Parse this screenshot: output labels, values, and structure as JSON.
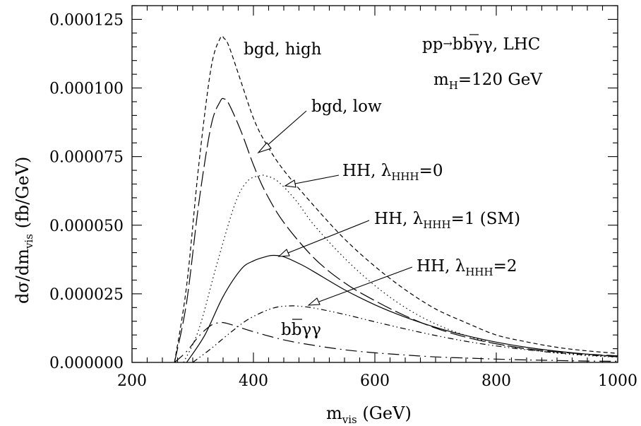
{
  "chart_data": {
    "type": "line",
    "xlabel": "m_vis (GeV)",
    "ylabel": "dσ/dm_vis (fb/GeV)",
    "xlim": [
      200,
      1000
    ],
    "ylim": [
      0,
      0.00013
    ],
    "x_ticks": [
      "200",
      "400",
      "600",
      "800",
      "1000"
    ],
    "y_ticks": [
      "0.000000",
      "0.000025",
      "0.000050",
      "0.000075",
      "0.000100",
      "0.000125"
    ],
    "legend_text": {
      "process": "pp → bb̄γγ, LHC",
      "mass": "m_H = 120 GeV"
    },
    "series": [
      {
        "name": "bgd, high",
        "x": [
          270,
          290,
          310,
          330,
          345,
          352,
          360,
          380,
          400,
          420,
          450,
          500,
          550,
          600,
          650,
          700,
          750,
          800,
          850,
          900,
          950,
          1000
        ],
        "y": [
          0,
          2.8e-05,
          7.2e-05,
          0.000107,
          0.000118,
          0.000118,
          0.000115,
          0.000102,
          8.9e-05,
          8e-05,
          7e-05,
          5.7e-05,
          4.5e-05,
          3.5e-05,
          2.65e-05,
          1.95e-05,
          1.45e-05,
          1e-05,
          7.5e-06,
          5.5e-06,
          4.2e-06,
          3.3e-06
        ]
      },
      {
        "name": "bgd, low",
        "x": [
          270,
          290,
          310,
          330,
          345,
          352,
          360,
          380,
          400,
          420,
          450,
          500,
          550,
          600,
          650,
          700,
          750,
          800,
          850,
          900,
          950,
          1000
        ],
        "y": [
          0,
          2.2e-05,
          5.8e-05,
          8.6e-05,
          9.5e-05,
          9.6e-05,
          9.4e-05,
          8.4e-05,
          7.2e-05,
          6.2e-05,
          5.1e-05,
          3.8e-05,
          2.9e-05,
          2.25e-05,
          1.7e-05,
          1.25e-05,
          9.2e-06,
          6.8e-06,
          5e-06,
          3.8e-06,
          3e-06,
          2.4e-06
        ]
      },
      {
        "name": "HH, λ_HHH=0",
        "x": [
          285,
          310,
          340,
          370,
          390,
          410,
          420,
          440,
          470,
          500,
          550,
          600,
          650,
          700,
          750,
          800,
          850,
          900,
          950,
          1000
        ],
        "y": [
          0,
          1.2e-05,
          3.6e-05,
          5.8e-05,
          6.6e-05,
          6.8e-05,
          6.8e-05,
          6.6e-05,
          5.9e-05,
          5e-05,
          3.8e-05,
          2.8e-05,
          2e-05,
          1.4e-05,
          9.8e-06,
          6.8e-06,
          4.8e-06,
          3.4e-06,
          2.5e-06,
          1.9e-06
        ]
      },
      {
        "name": "HH, λ_HHH=1 (SM)",
        "x": [
          290,
          320,
          350,
          380,
          400,
          420,
          432,
          450,
          480,
          500,
          550,
          600,
          650,
          700,
          750,
          800,
          850,
          900,
          950,
          1000
        ],
        "y": [
          0,
          1e-05,
          2.4e-05,
          3.4e-05,
          3.7e-05,
          3.85e-05,
          3.9e-05,
          3.85e-05,
          3.55e-05,
          3.3e-05,
          2.65e-05,
          2.1e-05,
          1.65e-05,
          1.28e-05,
          9.8e-06,
          7.4e-06,
          5.5e-06,
          4.1e-06,
          3e-06,
          2.2e-06
        ]
      },
      {
        "name": "HH, λ_HHH=2",
        "x": [
          300,
          330,
          360,
          390,
          420,
          440,
          460,
          475,
          500,
          550,
          600,
          650,
          700,
          750,
          800,
          850,
          900,
          950,
          1000
        ],
        "y": [
          0,
          5e-06,
          1.05e-05,
          1.55e-05,
          1.88e-05,
          2.02e-05,
          2.06e-05,
          2.05e-05,
          1.98e-05,
          1.75e-05,
          1.48e-05,
          1.22e-05,
          9.8e-06,
          7.7e-06,
          6e-06,
          4.6e-06,
          3.5e-06,
          2.7e-06,
          2e-06
        ]
      },
      {
        "name": "bb̄γγ",
        "x": [
          270,
          290,
          310,
          330,
          345,
          355,
          370,
          400,
          450,
          500,
          550,
          600,
          650,
          700,
          750,
          800,
          850,
          900,
          950,
          1000
        ],
        "y": [
          0,
          4e-06,
          9.5e-06,
          1.35e-05,
          1.45e-05,
          1.43e-05,
          1.33e-05,
          1.12e-05,
          8.2e-06,
          6.2e-06,
          4.6e-06,
          3.5e-06,
          2.7e-06,
          2e-06,
          1.6e-06,
          1.2e-06,
          9e-07,
          7e-07,
          5e-07,
          4e-07
        ]
      }
    ]
  }
}
